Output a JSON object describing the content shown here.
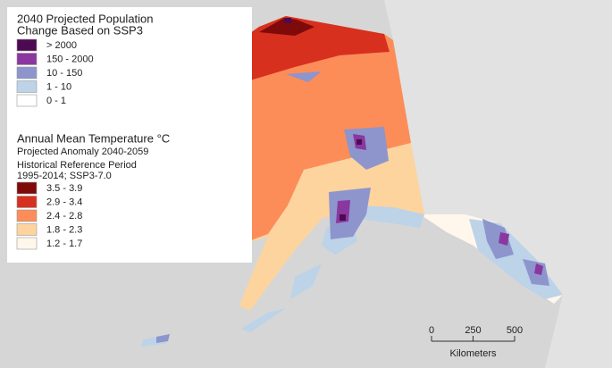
{
  "legend": {
    "population": {
      "title_lines": [
        "2040 Projected Population",
        "Change Based on SSP3"
      ],
      "items": [
        {
          "label": "> 2000",
          "color": "#4d0a52"
        },
        {
          "label": "150 - 2000",
          "color": "#8a37a0"
        },
        {
          "label": "10 - 150",
          "color": "#8d95cc"
        },
        {
          "label": "1 - 10",
          "color": "#bcd3e8"
        },
        {
          "label": "0 - 1",
          "color": "#ffffff"
        }
      ]
    },
    "temperature": {
      "title": "Annual Mean Temperature °C",
      "subtitle": "Projected Anomaly 2040-2059",
      "note_lines": [
        "Historical Reference Period",
        "1995-2014; SSP3-7.0"
      ],
      "items": [
        {
          "label": "3.5 - 3.9",
          "color": "#7f0a0a"
        },
        {
          "label": "2.9 - 3.4",
          "color": "#d7301f"
        },
        {
          "label": "2.4 - 2.8",
          "color": "#fc8d59"
        },
        {
          "label": "1.8 - 2.3",
          "color": "#fdd49e"
        },
        {
          "label": "1.2 - 1.7",
          "color": "#fff7ec"
        }
      ]
    }
  },
  "scale_bar": {
    "ticks": [
      "0",
      "250",
      "500"
    ],
    "unit": "Kilometers"
  }
}
